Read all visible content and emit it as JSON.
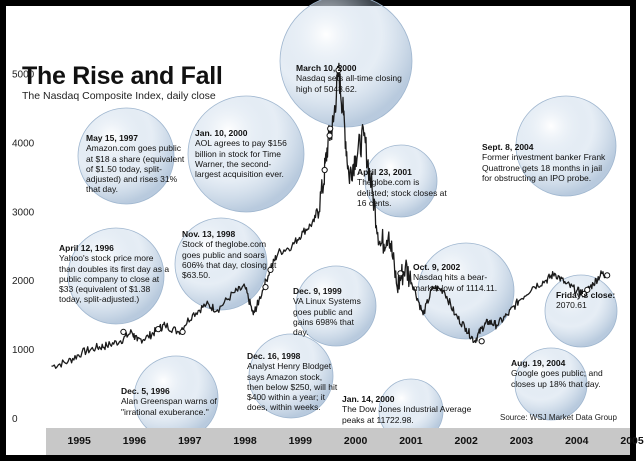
{
  "title": "The Rise and Fall",
  "subtitle": "The Nasdaq Composite Index, daily close",
  "source": "Source: WSJ Market Data Group",
  "colors": {
    "line": "#1a1a1a",
    "axis_band": "#c8c8c8",
    "bubble": "#b8cde3"
  },
  "chart_data": {
    "type": "line",
    "title": "The Rise and Fall",
    "subtitle": "The Nasdaq Composite Index, daily close",
    "xlabel": "",
    "ylabel": "",
    "x_ticks": [
      "1995",
      "1996",
      "1997",
      "1998",
      "1999",
      "2000",
      "2001",
      "2002",
      "2003",
      "2004",
      "2005"
    ],
    "y_ticks": [
      0,
      1000,
      2000,
      3000,
      4000,
      5000
    ],
    "ylim": [
      0,
      5400
    ],
    "xlim": [
      1994.9,
      2005.3
    ],
    "grid": false,
    "series": [
      {
        "x": [
          1995.0,
          1995.3,
          1995.55,
          1995.8,
          1996.0,
          1996.25,
          1996.45,
          1996.55,
          1996.75,
          1996.93,
          1997.05,
          1997.3,
          1997.55,
          1997.8,
          1998.0,
          1998.3,
          1998.5,
          1998.65,
          1998.75,
          1998.95,
          1999.1,
          1999.35,
          1999.55,
          1999.75,
          1999.9,
          2000.0,
          2000.1,
          2000.19,
          2000.28,
          2000.38,
          2000.5,
          2000.65,
          2000.8,
          2000.95,
          2001.1,
          2001.25,
          2001.4,
          2001.55,
          2001.72,
          2001.9,
          2002.1,
          2002.3,
          2002.5,
          2002.65,
          2002.78,
          2002.9,
          2003.05,
          2003.25,
          2003.45,
          2003.7,
          2003.95,
          2004.1,
          2004.3,
          2004.5,
          2004.63,
          2004.8,
          2004.95,
          2005.05
        ],
        "y": [
          750,
          820,
          950,
          1020,
          1050,
          1120,
          1250,
          1120,
          1180,
          1290,
          1350,
          1250,
          1500,
          1650,
          1570,
          1820,
          1900,
          1500,
          1700,
          2150,
          2400,
          2500,
          2700,
          2850,
          3300,
          4000,
          4300,
          5048.62,
          4400,
          3500,
          3800,
          4100,
          3300,
          2500,
          2700,
          1900,
          2200,
          1900,
          1500,
          1900,
          1850,
          1500,
          1300,
          1114.11,
          1300,
          1400,
          1350,
          1500,
          1700,
          1900,
          2000,
          2100,
          1950,
          1850,
          1800,
          1950,
          2100,
          2070.61
        ]
      }
    ],
    "annotations": [
      {
        "date": "March 10, 2000",
        "text": "Nasdaq sets all-time closing high of 5048.62."
      },
      {
        "date": "May 15, 1997",
        "text": "Amazon.com goes public at $18 a share (equivalent of $1.50 today, split-adjusted) and rises 31% that day."
      },
      {
        "date": "Jan. 10, 2000",
        "text": "AOL agrees to pay $156 billion in stock for Time Warner, the second-largest acquisition ever."
      },
      {
        "date": "Sept. 8, 2004",
        "text": "Former investment banker Frank Quattrone gets 18 months in jail for obstructing an IPO probe."
      },
      {
        "date": "April 23, 2001",
        "text": "Theglobe.com is delisted; stock closes at 16 cents."
      },
      {
        "date": "April 12, 1996",
        "text": "Yahoo's stock price more than doubles its first day as a public company to close at $33 (equivalent of $1.38 today, split-adjusted.)"
      },
      {
        "date": "Nov. 13, 1998",
        "text": "Stock of theglobe.com goes public and soars 606% that day, closing at $63.50."
      },
      {
        "date": "Oct. 9, 2002",
        "text": "Nasdaq hits a bear-market low of 1114.11."
      },
      {
        "date": "Friday's close:",
        "text": "2070.61"
      },
      {
        "date": "Dec. 9, 1999",
        "text": "VA Linux Systems goes public and gains 698% that day."
      },
      {
        "date": "Dec. 16, 1998",
        "text": "Analyst Henry Blodget says Amazon stock, then below $250, will hit $400 within a year; it does, within weeks."
      },
      {
        "date": "Dec. 5, 1996",
        "text": "Alan Greenspan warns of \"irrational exuberance.\""
      },
      {
        "date": "Aug. 19, 2004",
        "text": "Google goes public; and closes up 18% that day."
      },
      {
        "date": "Jan. 14, 2000",
        "text": "The Dow Jones Industrial Average peaks at 11722.98."
      }
    ]
  }
}
